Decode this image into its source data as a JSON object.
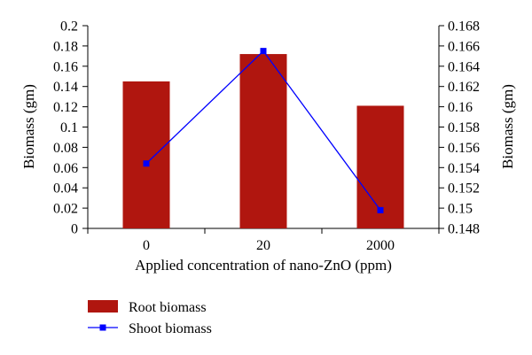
{
  "chart_data": {
    "type": "bar",
    "categories": [
      "0",
      "20",
      "2000"
    ],
    "xlabel": "Applied concentration of nano-ZnO (ppm)",
    "ylabel": "Biomass (gm)",
    "y2label": "Biomass (gm)",
    "ylim": [
      0,
      0.2
    ],
    "yticks": [
      "0",
      "0.02",
      "0.04",
      "0.06",
      "0.08",
      "0.1",
      "0.12",
      "0.14",
      "0.16",
      "0.18",
      "0.2"
    ],
    "y2lim": [
      0.148,
      0.168
    ],
    "y2ticks": [
      "0.148",
      "0.15",
      "0.152",
      "0.154",
      "0.156",
      "0.158",
      "0.16",
      "0.162",
      "0.164",
      "0.166",
      "0.168"
    ],
    "series": [
      {
        "name": "Root biomass",
        "type": "bar",
        "axis": "left",
        "color": "#B0160F",
        "values": [
          0.145,
          0.172,
          0.121
        ]
      },
      {
        "name": "Shoot biomass",
        "type": "line",
        "axis": "right",
        "color": "#0000FF",
        "marker": "square",
        "values": [
          0.1544,
          0.1655,
          0.1498
        ]
      }
    ],
    "grid": false,
    "legend_position": "bottom-left"
  }
}
